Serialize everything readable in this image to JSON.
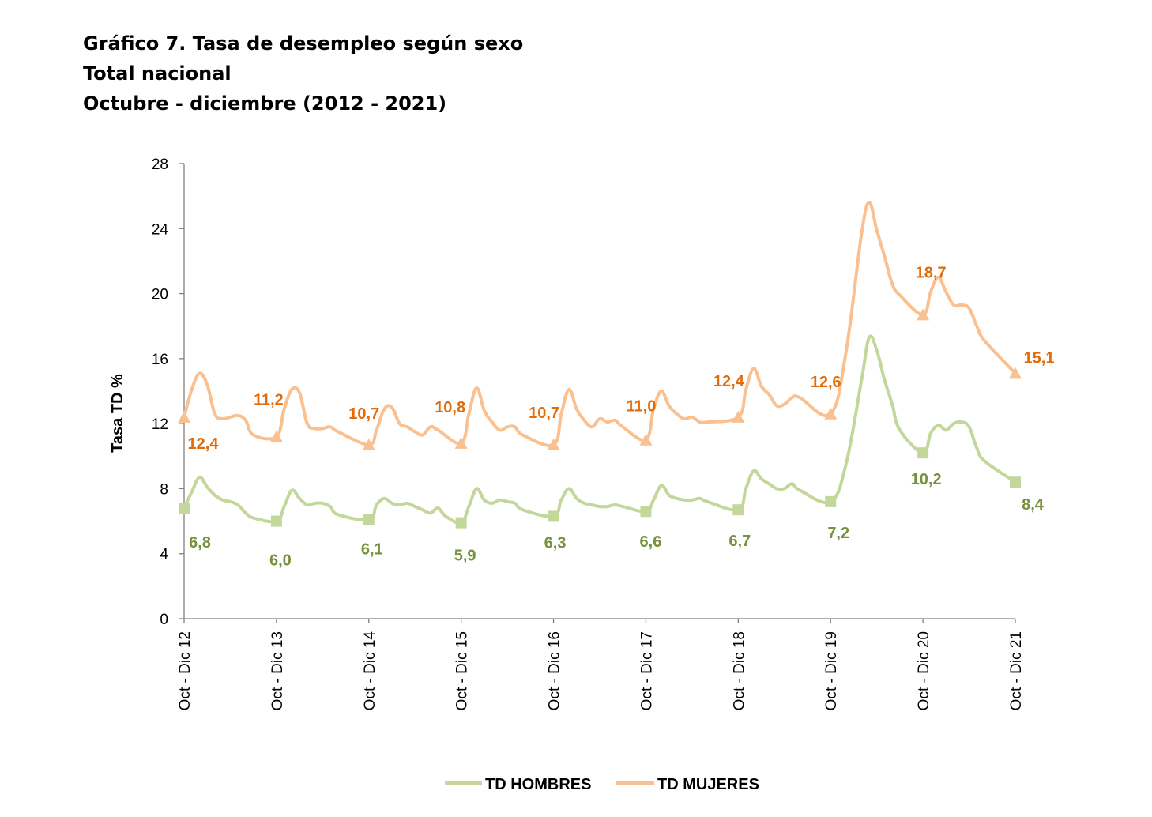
{
  "title": {
    "line1": "Gráfico 7. Tasa de desempleo según sexo",
    "line2": "Total nacional",
    "line3": "Octubre - diciembre (2012  - 2021)"
  },
  "colors": {
    "hombres_line": "#c4d79b",
    "hombres_label": "#76923c",
    "mujeres_line": "#fac090",
    "mujeres_label": "#e36c0a",
    "axis": "#808080"
  },
  "chart_data": {
    "type": "line",
    "ylabel": "Tasa TD %",
    "xlabel": "",
    "ylim": [
      0,
      28
    ],
    "yticks": [
      0,
      4,
      8,
      12,
      16,
      20,
      24,
      28
    ],
    "grid": false,
    "legend_position": "bottom",
    "categories": [
      "Oct - Dic 12",
      "Oct - Dic 13",
      "Oct - Dic 14",
      "Oct - Dic 15",
      "Oct - Dic 16",
      "Oct - Dic 17",
      "Oct - Dic 18",
      "Oct - Dic 19",
      "Oct - Dic 20",
      "Oct - Dic 21"
    ],
    "series": [
      {
        "name": "TD HOMBRES",
        "marker": "square",
        "values": [
          6.8,
          6.0,
          6.1,
          5.9,
          6.3,
          6.6,
          6.7,
          7.2,
          10.2,
          8.4
        ],
        "labels": [
          "6,8",
          "6,0",
          "6,1",
          "5,9",
          "6,3",
          "6,6",
          "6,7",
          "7,2",
          "10,2",
          "8,4"
        ],
        "monthly_path": [
          [
            0,
            6.8
          ],
          [
            0.083,
            7.8
          ],
          [
            0.167,
            8.7
          ],
          [
            0.25,
            8.1
          ],
          [
            0.333,
            7.6
          ],
          [
            0.417,
            7.3
          ],
          [
            0.5,
            7.2
          ],
          [
            0.583,
            7.0
          ],
          [
            0.667,
            6.5
          ],
          [
            0.75,
            6.2
          ],
          [
            1.0,
            6.0
          ],
          [
            1.083,
            6.9
          ],
          [
            1.167,
            7.9
          ],
          [
            1.25,
            7.4
          ],
          [
            1.333,
            7.0
          ],
          [
            1.417,
            7.1
          ],
          [
            1.5,
            7.1
          ],
          [
            1.583,
            6.9
          ],
          [
            1.667,
            6.4
          ],
          [
            2.0,
            6.1
          ],
          [
            2.083,
            7.0
          ],
          [
            2.167,
            7.4
          ],
          [
            2.25,
            7.1
          ],
          [
            2.333,
            7.0
          ],
          [
            2.417,
            7.1
          ],
          [
            2.5,
            6.9
          ],
          [
            2.583,
            6.7
          ],
          [
            2.667,
            6.5
          ],
          [
            2.75,
            6.8
          ],
          [
            2.833,
            6.3
          ],
          [
            3.0,
            5.9
          ],
          [
            3.083,
            6.9
          ],
          [
            3.167,
            8.0
          ],
          [
            3.25,
            7.3
          ],
          [
            3.333,
            7.1
          ],
          [
            3.417,
            7.3
          ],
          [
            3.5,
            7.2
          ],
          [
            3.583,
            7.1
          ],
          [
            3.667,
            6.7
          ],
          [
            4.0,
            6.3
          ],
          [
            4.083,
            7.3
          ],
          [
            4.167,
            8.0
          ],
          [
            4.25,
            7.4
          ],
          [
            4.333,
            7.1
          ],
          [
            4.417,
            7.0
          ],
          [
            4.5,
            6.9
          ],
          [
            4.583,
            6.9
          ],
          [
            4.667,
            7.0
          ],
          [
            4.75,
            6.9
          ],
          [
            5.0,
            6.6
          ],
          [
            5.083,
            7.3
          ],
          [
            5.167,
            8.2
          ],
          [
            5.25,
            7.6
          ],
          [
            5.333,
            7.4
          ],
          [
            5.417,
            7.3
          ],
          [
            5.5,
            7.3
          ],
          [
            5.583,
            7.4
          ],
          [
            5.667,
            7.2
          ],
          [
            6.0,
            6.7
          ],
          [
            6.083,
            8.0
          ],
          [
            6.167,
            9.1
          ],
          [
            6.25,
            8.6
          ],
          [
            6.333,
            8.3
          ],
          [
            6.417,
            8.0
          ],
          [
            6.5,
            8.0
          ],
          [
            6.583,
            8.3
          ],
          [
            6.667,
            7.9
          ],
          [
            7.0,
            7.2
          ],
          [
            7.167,
            9.5
          ],
          [
            7.333,
            14.6
          ],
          [
            7.417,
            17.3
          ],
          [
            7.5,
            16.5
          ],
          [
            7.583,
            14.7
          ],
          [
            7.667,
            13.2
          ],
          [
            7.75,
            11.6
          ],
          [
            8.0,
            10.2
          ],
          [
            8.083,
            11.4
          ],
          [
            8.167,
            11.9
          ],
          [
            8.25,
            11.6
          ],
          [
            8.333,
            12.0
          ],
          [
            8.417,
            12.1
          ],
          [
            8.5,
            11.8
          ],
          [
            8.583,
            10.5
          ],
          [
            8.667,
            9.7
          ],
          [
            9.0,
            8.4
          ]
        ]
      },
      {
        "name": "TD MUJERES",
        "marker": "triangle",
        "values": [
          12.4,
          11.2,
          10.7,
          10.8,
          10.7,
          11.0,
          12.4,
          12.6,
          18.7,
          15.1
        ],
        "labels": [
          "12,4",
          "11,2",
          "10,7",
          "10,8",
          "10,7",
          "11,0",
          "12,4",
          "12,6",
          "18,7",
          "15,1"
        ],
        "monthly_path": [
          [
            0,
            12.4
          ],
          [
            0.083,
            14.1
          ],
          [
            0.167,
            15.1
          ],
          [
            0.25,
            14.4
          ],
          [
            0.333,
            12.6
          ],
          [
            0.417,
            12.3
          ],
          [
            0.5,
            12.4
          ],
          [
            0.583,
            12.5
          ],
          [
            0.667,
            12.2
          ],
          [
            0.75,
            11.3
          ],
          [
            1.0,
            11.2
          ],
          [
            1.083,
            12.9
          ],
          [
            1.167,
            14.1
          ],
          [
            1.25,
            13.9
          ],
          [
            1.333,
            12.0
          ],
          [
            1.417,
            11.7
          ],
          [
            1.5,
            11.7
          ],
          [
            1.583,
            11.8
          ],
          [
            1.667,
            11.5
          ],
          [
            2.0,
            10.7
          ],
          [
            2.083,
            11.6
          ],
          [
            2.167,
            12.9
          ],
          [
            2.25,
            13.0
          ],
          [
            2.333,
            12.0
          ],
          [
            2.417,
            11.8
          ],
          [
            2.5,
            11.5
          ],
          [
            2.583,
            11.3
          ],
          [
            2.667,
            11.8
          ],
          [
            2.75,
            11.6
          ],
          [
            3.0,
            10.8
          ],
          [
            3.083,
            12.6
          ],
          [
            3.167,
            14.2
          ],
          [
            3.25,
            12.8
          ],
          [
            3.333,
            12.1
          ],
          [
            3.417,
            11.6
          ],
          [
            3.5,
            11.8
          ],
          [
            3.583,
            11.8
          ],
          [
            3.667,
            11.3
          ],
          [
            4.0,
            10.7
          ],
          [
            4.083,
            12.6
          ],
          [
            4.167,
            14.1
          ],
          [
            4.25,
            12.9
          ],
          [
            4.333,
            12.2
          ],
          [
            4.417,
            11.8
          ],
          [
            4.5,
            12.3
          ],
          [
            4.583,
            12.1
          ],
          [
            4.667,
            12.2
          ],
          [
            4.75,
            11.8
          ],
          [
            5.0,
            11.0
          ],
          [
            5.083,
            12.9
          ],
          [
            5.167,
            14.0
          ],
          [
            5.25,
            13.1
          ],
          [
            5.333,
            12.6
          ],
          [
            5.417,
            12.3
          ],
          [
            5.5,
            12.4
          ],
          [
            5.583,
            12.1
          ],
          [
            5.667,
            12.1
          ],
          [
            6.0,
            12.4
          ],
          [
            6.083,
            14.1
          ],
          [
            6.167,
            15.4
          ],
          [
            6.25,
            14.3
          ],
          [
            6.333,
            13.8
          ],
          [
            6.417,
            13.1
          ],
          [
            6.5,
            13.2
          ],
          [
            6.583,
            13.6
          ],
          [
            6.667,
            13.6
          ],
          [
            7.0,
            12.6
          ],
          [
            7.167,
            16.4
          ],
          [
            7.333,
            23.6
          ],
          [
            7.417,
            25.6
          ],
          [
            7.5,
            23.9
          ],
          [
            7.583,
            22.3
          ],
          [
            7.667,
            20.6
          ],
          [
            7.75,
            19.9
          ],
          [
            8.0,
            18.7
          ],
          [
            8.083,
            20.1
          ],
          [
            8.167,
            21.0
          ],
          [
            8.25,
            20.1
          ],
          [
            8.333,
            19.3
          ],
          [
            8.417,
            19.3
          ],
          [
            8.5,
            19.1
          ],
          [
            8.583,
            18.0
          ],
          [
            8.667,
            17.1
          ],
          [
            9.0,
            15.1
          ]
        ]
      }
    ]
  }
}
